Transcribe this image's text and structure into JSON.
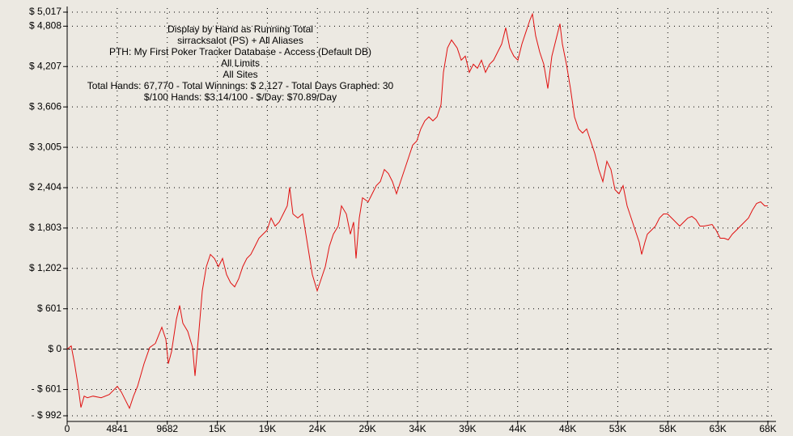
{
  "chart_data": {
    "type": "line",
    "annotations": [
      "Display by Hand as Running Total",
      "sirracksalot (PS) + All Aliases",
      "PTH: My First Poker Tracker Database - Access (Default DB)",
      "All Limits",
      "All Sites",
      "Total Hands: 67,770 - Total Winnings: $ 2,127 - Total Days Graphed: 30",
      "$/100 Hands: $3.14/100 - $/Day: $70.89/Day"
    ],
    "color": "#e01010",
    "grid": true,
    "x": [
      0,
      391,
      704,
      1017,
      1330,
      1643,
      1957,
      2504,
      3287,
      4070,
      4852,
      5243,
      5635,
      6026,
      6417,
      6809,
      7435,
      7983,
      8530,
      9156,
      9548,
      9783,
      10096,
      10565,
      10878,
      11191,
      11661,
      12130,
      12365,
      12678,
      13069,
      13461,
      13852,
      14243,
      14635,
      15026,
      15417,
      15809,
      16200,
      16591,
      16982,
      17374,
      17765,
      18156,
      18548,
      18939,
      19330,
      19722,
      20113,
      20504,
      20895,
      21287,
      21522,
      21835,
      22304,
      22774,
      23087,
      23400,
      23713,
      24182,
      24574,
      24965,
      25356,
      25748,
      26217,
      26530,
      27000,
      27391,
      27704,
      27939,
      28252,
      28565,
      29113,
      29504,
      29896,
      30287,
      30678,
      31069,
      31461,
      31852,
      32243,
      32635,
      33026,
      33417,
      33809,
      34200,
      34591,
      34982,
      35374,
      35765,
      36156,
      36391,
      36782,
      37174,
      37721,
      38113,
      38504,
      38895,
      39287,
      39678,
      40069,
      40461,
      40852,
      41243,
      41635,
      42026,
      42417,
      42809,
      43200,
      43591,
      43983,
      44374,
      44765,
      45000,
      45313,
      45704,
      46096,
      46487,
      46878,
      47270,
      47661,
      47896,
      48287,
      48678,
      49070,
      49461,
      49852,
      50244,
      50635,
      51026,
      51417,
      51809,
      52200,
      52591,
      52983,
      53374,
      53765,
      54156,
      54548,
      54939,
      55330,
      55565,
      55878,
      56113,
      56504,
      56896,
      57287,
      57678,
      58070,
      58461,
      58852,
      59243,
      59635,
      60026,
      60417,
      60809,
      61200,
      61591,
      62374,
      62765,
      63156,
      63548,
      63939,
      64330,
      64722,
      65113,
      65504,
      65896,
      66287,
      66678,
      67070,
      67461,
      67770
    ],
    "values": [
      0,
      48,
      -205,
      -506,
      -868,
      -699,
      -723,
      -699,
      -723,
      -675,
      -554,
      -639,
      -759,
      -880,
      -699,
      -554,
      -217,
      24,
      84,
      325,
      145,
      -217,
      -36,
      446,
      651,
      386,
      265,
      24,
      -398,
      145,
      868,
      1229,
      1410,
      1350,
      1229,
      1350,
      1109,
      988,
      928,
      1048,
      1229,
      1350,
      1410,
      1530,
      1651,
      1711,
      1771,
      1952,
      1832,
      1892,
      2012,
      2133,
      2410,
      2012,
      1952,
      2012,
      1711,
      1410,
      1109,
      868,
      1048,
      1229,
      1530,
      1711,
      1832,
      2133,
      2012,
      1711,
      1892,
      1350,
      1952,
      2253,
      2193,
      2314,
      2434,
      2494,
      2675,
      2615,
      2494,
      2314,
      2494,
      2675,
      2856,
      3037,
      3097,
      3278,
      3398,
      3458,
      3398,
      3458,
      3639,
      4121,
      4483,
      4603,
      4483,
      4302,
      4362,
      4121,
      4242,
      4181,
      4302,
      4121,
      4242,
      4302,
      4422,
      4543,
      4784,
      4483,
      4362,
      4302,
      4543,
      4724,
      4904,
      4989,
      4663,
      4422,
      4242,
      3880,
      4362,
      4603,
      4844,
      4543,
      4242,
      3880,
      3458,
      3278,
      3217,
      3278,
      3097,
      2916,
      2675,
      2494,
      2796,
      2675,
      2374,
      2314,
      2434,
      2133,
      1952,
      1771,
      1591,
      1410,
      1591,
      1711,
      1771,
      1832,
      1952,
      2012,
      2012,
      1952,
      1892,
      1832,
      1892,
      1952,
      1976,
      1928,
      1832,
      1832,
      1856,
      1771,
      1651,
      1651,
      1627,
      1711,
      1771,
      1832,
      1892,
      1952,
      2073,
      2169,
      2193,
      2133,
      2133
    ],
    "xlim": [
      0,
      67774
    ],
    "xticks": [
      0,
      4841,
      9682,
      {
        "value": 14523,
        "label": "15K"
      },
      {
        "value": 19364,
        "label": "19K"
      },
      {
        "value": 24205,
        "label": "24K"
      },
      {
        "value": 29046,
        "label": "29K"
      },
      {
        "value": 33887,
        "label": "34K"
      },
      {
        "value": 38728,
        "label": "39K"
      },
      {
        "value": 43569,
        "label": "44K"
      },
      {
        "value": 48410,
        "label": "48K"
      },
      {
        "value": 53251,
        "label": "53K"
      },
      {
        "value": 58092,
        "label": "58K"
      },
      {
        "value": 62933,
        "label": "63K"
      },
      {
        "value": 67774,
        "label": "68K"
      }
    ],
    "ylim": [
      -992,
      5017
    ],
    "yticks": [
      {
        "value": 5017,
        "label": "$ 5,017"
      },
      {
        "value": 4808,
        "label": "$ 4,808"
      },
      {
        "value": 4207,
        "label": "$ 4,207"
      },
      {
        "value": 3606,
        "label": "$ 3,606"
      },
      {
        "value": 3005,
        "label": "$ 3,005"
      },
      {
        "value": 2404,
        "label": "$ 2,404"
      },
      {
        "value": 1803,
        "label": "$ 1,803"
      },
      {
        "value": 1202,
        "label": "$ 1,202"
      },
      {
        "value": 601,
        "label": "$ 601"
      },
      {
        "value": 0,
        "label": "$ 0"
      },
      {
        "value": -601,
        "label": "- $ 601"
      },
      {
        "value": -992,
        "label": "- $ 992"
      }
    ]
  }
}
